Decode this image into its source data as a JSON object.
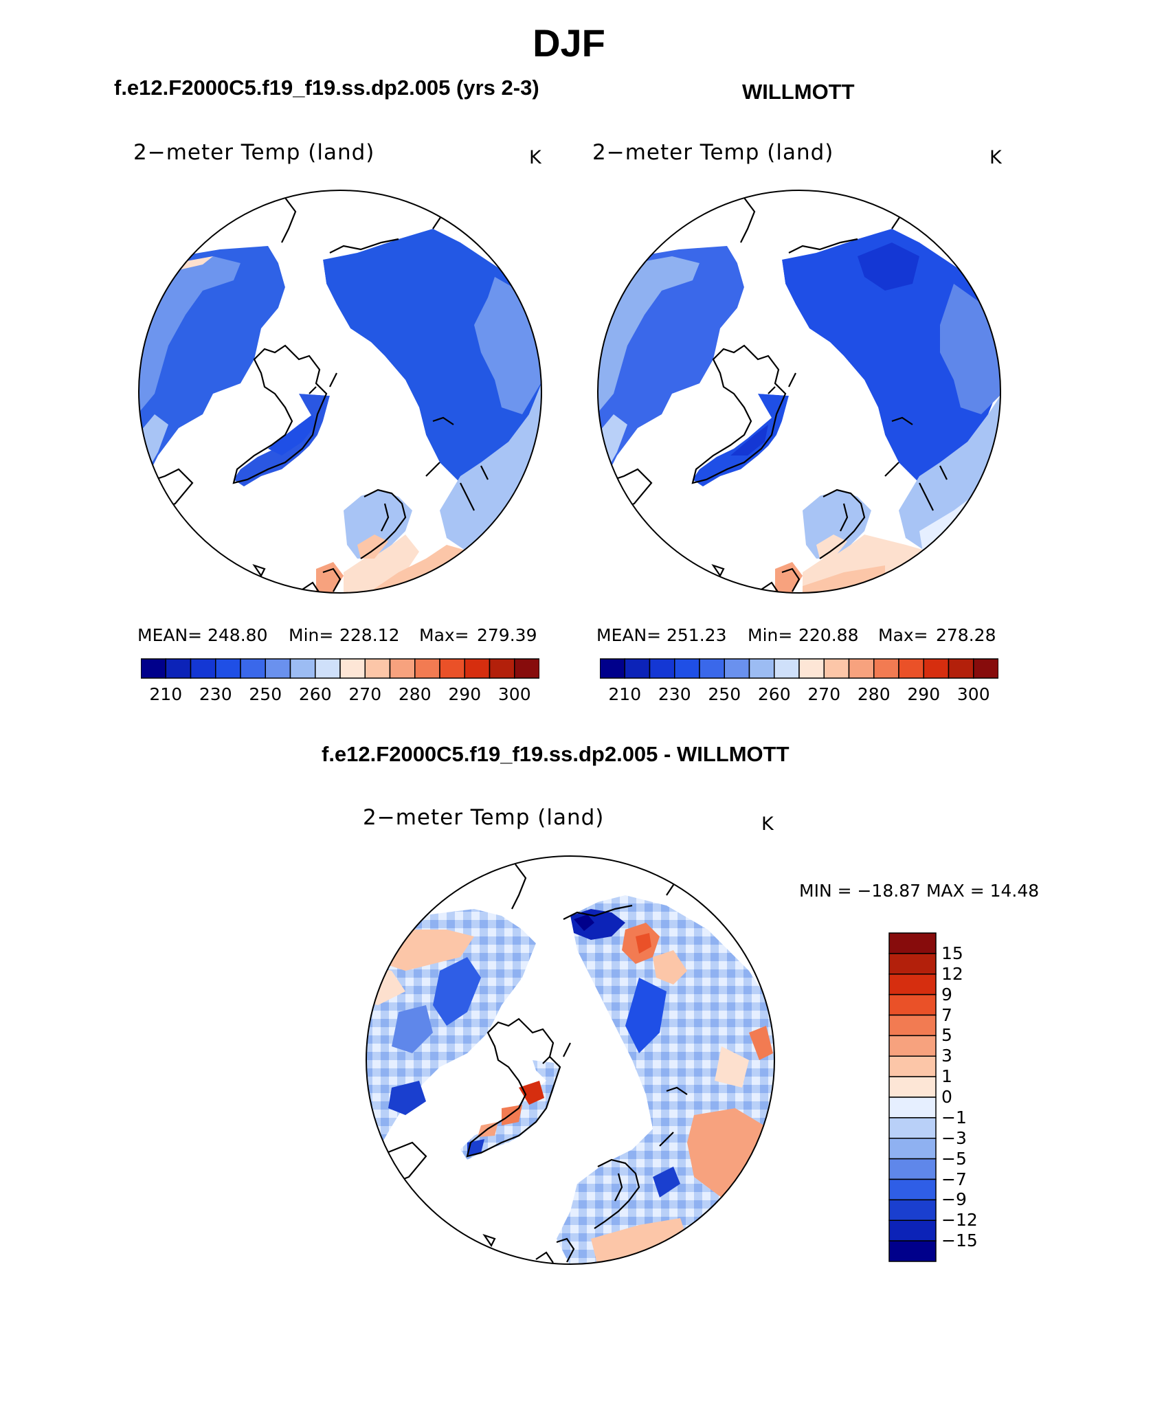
{
  "page_title": "DJF",
  "panels": {
    "model": {
      "case_title": "f.e12.F2000C5.f19_f19.ss.dp2.005 (yrs 2-3)",
      "variable_label": "2−meter Temp (land)",
      "units": "K",
      "stats": {
        "mean_label": "MEAN=",
        "mean": "248.80",
        "min_label": "Min=",
        "min": "228.12",
        "max_label": "Max=",
        "max": "279.39"
      }
    },
    "obs": {
      "case_title": "WILLMOTT",
      "variable_label": "2−meter Temp (land)",
      "units": "K",
      "stats": {
        "mean_label": "MEAN=",
        "mean": "251.23",
        "min_label": "Min=",
        "min": "220.88",
        "max_label": "Max=",
        "max": "278.28"
      }
    },
    "diff": {
      "case_title": "f.e12.F2000C5.f19_f19.ss.dp2.005 - WILLMOTT",
      "variable_label": "2−meter Temp (land)",
      "units": "K",
      "minmax_text": "MIN = −18.87 MAX =   14.48"
    }
  },
  "chart_data": [
    {
      "type": "heatmap",
      "title": "2−meter Temp (land)",
      "subtitle": "f.e12.F2000C5.f19_f19.ss.dp2.005 (yrs 2-3)",
      "projection": "north polar stereographic",
      "units": "K",
      "mean": 248.8,
      "min": 228.12,
      "max": 279.39,
      "colorbar_ticks": [
        "210",
        "230",
        "250",
        "260",
        "270",
        "280",
        "290",
        "300"
      ],
      "colorbar_colors": [
        "#00008b",
        "#0c23b8",
        "#1437d4",
        "#1f4fe6",
        "#3a68ea",
        "#6a91ee",
        "#9cbcf3",
        "#cfe0fa",
        "#fde6d6",
        "#fcc6a8",
        "#f7a27e",
        "#f27b52",
        "#ea5128",
        "#d62e0f",
        "#b3200b",
        "#870c0c"
      ]
    },
    {
      "type": "heatmap",
      "title": "2−meter Temp (land)",
      "subtitle": "WILLMOTT",
      "projection": "north polar stereographic",
      "units": "K",
      "mean": 251.23,
      "min": 220.88,
      "max": 278.28,
      "colorbar_ticks": [
        "210",
        "230",
        "250",
        "260",
        "270",
        "280",
        "290",
        "300"
      ],
      "colorbar_colors": [
        "#00008b",
        "#0c23b8",
        "#1437d4",
        "#1f4fe6",
        "#3a68ea",
        "#6a91ee",
        "#9cbcf3",
        "#cfe0fa",
        "#fde6d6",
        "#fcc6a8",
        "#f7a27e",
        "#f27b52",
        "#ea5128",
        "#d62e0f",
        "#b3200b",
        "#870c0c"
      ]
    },
    {
      "type": "heatmap",
      "title": "2−meter Temp (land)",
      "subtitle": "f.e12.F2000C5.f19_f19.ss.dp2.005 - WILLMOTT",
      "projection": "north polar stereographic",
      "units": "K",
      "min": -18.87,
      "max": 14.48,
      "colorbar_ticks": [
        "15",
        "12",
        "9",
        "7",
        "5",
        "3",
        "1",
        "0",
        "−1",
        "−3",
        "−5",
        "−7",
        "−9",
        "−12",
        "−15"
      ],
      "colorbar_colors": [
        "#870c0c",
        "#b3200b",
        "#d62e0f",
        "#ea5128",
        "#f27b52",
        "#f7a27e",
        "#fcc6a8",
        "#fde6d6",
        "#e6efff",
        "#b9d0f8",
        "#8fb1f1",
        "#5f87ea",
        "#2f5ee6",
        "#1a3fcf",
        "#0c23b8",
        "#00008b"
      ]
    }
  ]
}
